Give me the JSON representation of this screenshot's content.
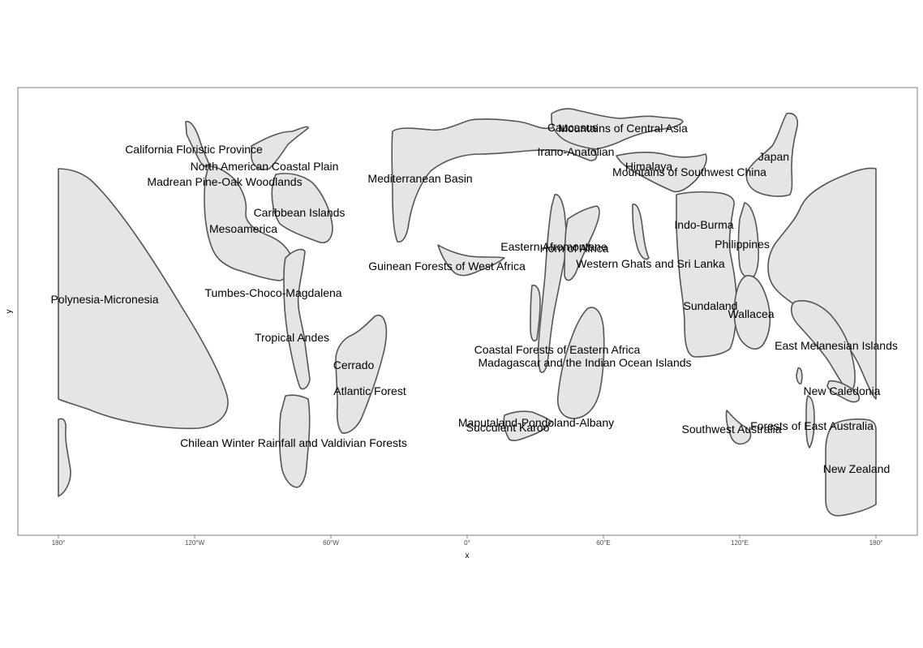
{
  "map": {
    "title": "",
    "x_axis_title": "x",
    "y_axis_title": "y",
    "x_ticks": [
      "180°",
      "120°W",
      "60°W",
      "0°",
      "60°E",
      "120°E",
      "180°"
    ],
    "region_fill": "#e5e5e5",
    "region_stroke": "#555555",
    "hotspots": [
      "California Floristic Province",
      "North American Coastal Plain",
      "Madrean Pine-Oak Woodlands",
      "Caribbean Islands",
      "Mesoamerica",
      "Polynesia-Micronesia",
      "Tumbes-Choco-Magdalena",
      "Tropical Andes",
      "Cerrado",
      "Atlantic Forest",
      "Chilean Winter Rainfall and Valdivian Forests",
      "Mediterranean Basin",
      "Guinean Forests of West Africa",
      "Caucasus",
      "Mountains of Central Asia",
      "Irano-Anatolian",
      "Himalaya",
      "Mountains of Southwest China",
      "Japan",
      "Eastern Afromontane",
      "Horn of Africa",
      "Western Ghats and Sri Lanka",
      "Indo-Burma",
      "Philippines",
      "Sundaland",
      "Wallacea",
      "East Melanesian Islands",
      "Coastal Forests of Eastern Africa",
      "Madagascar and the Indian Ocean Islands",
      "New Caledonia",
      "Maputaland-Pondoland-Albany",
      "Succulent Karoo",
      "Southwest Australia",
      "Forests of East Australia",
      "New Zealand"
    ]
  }
}
